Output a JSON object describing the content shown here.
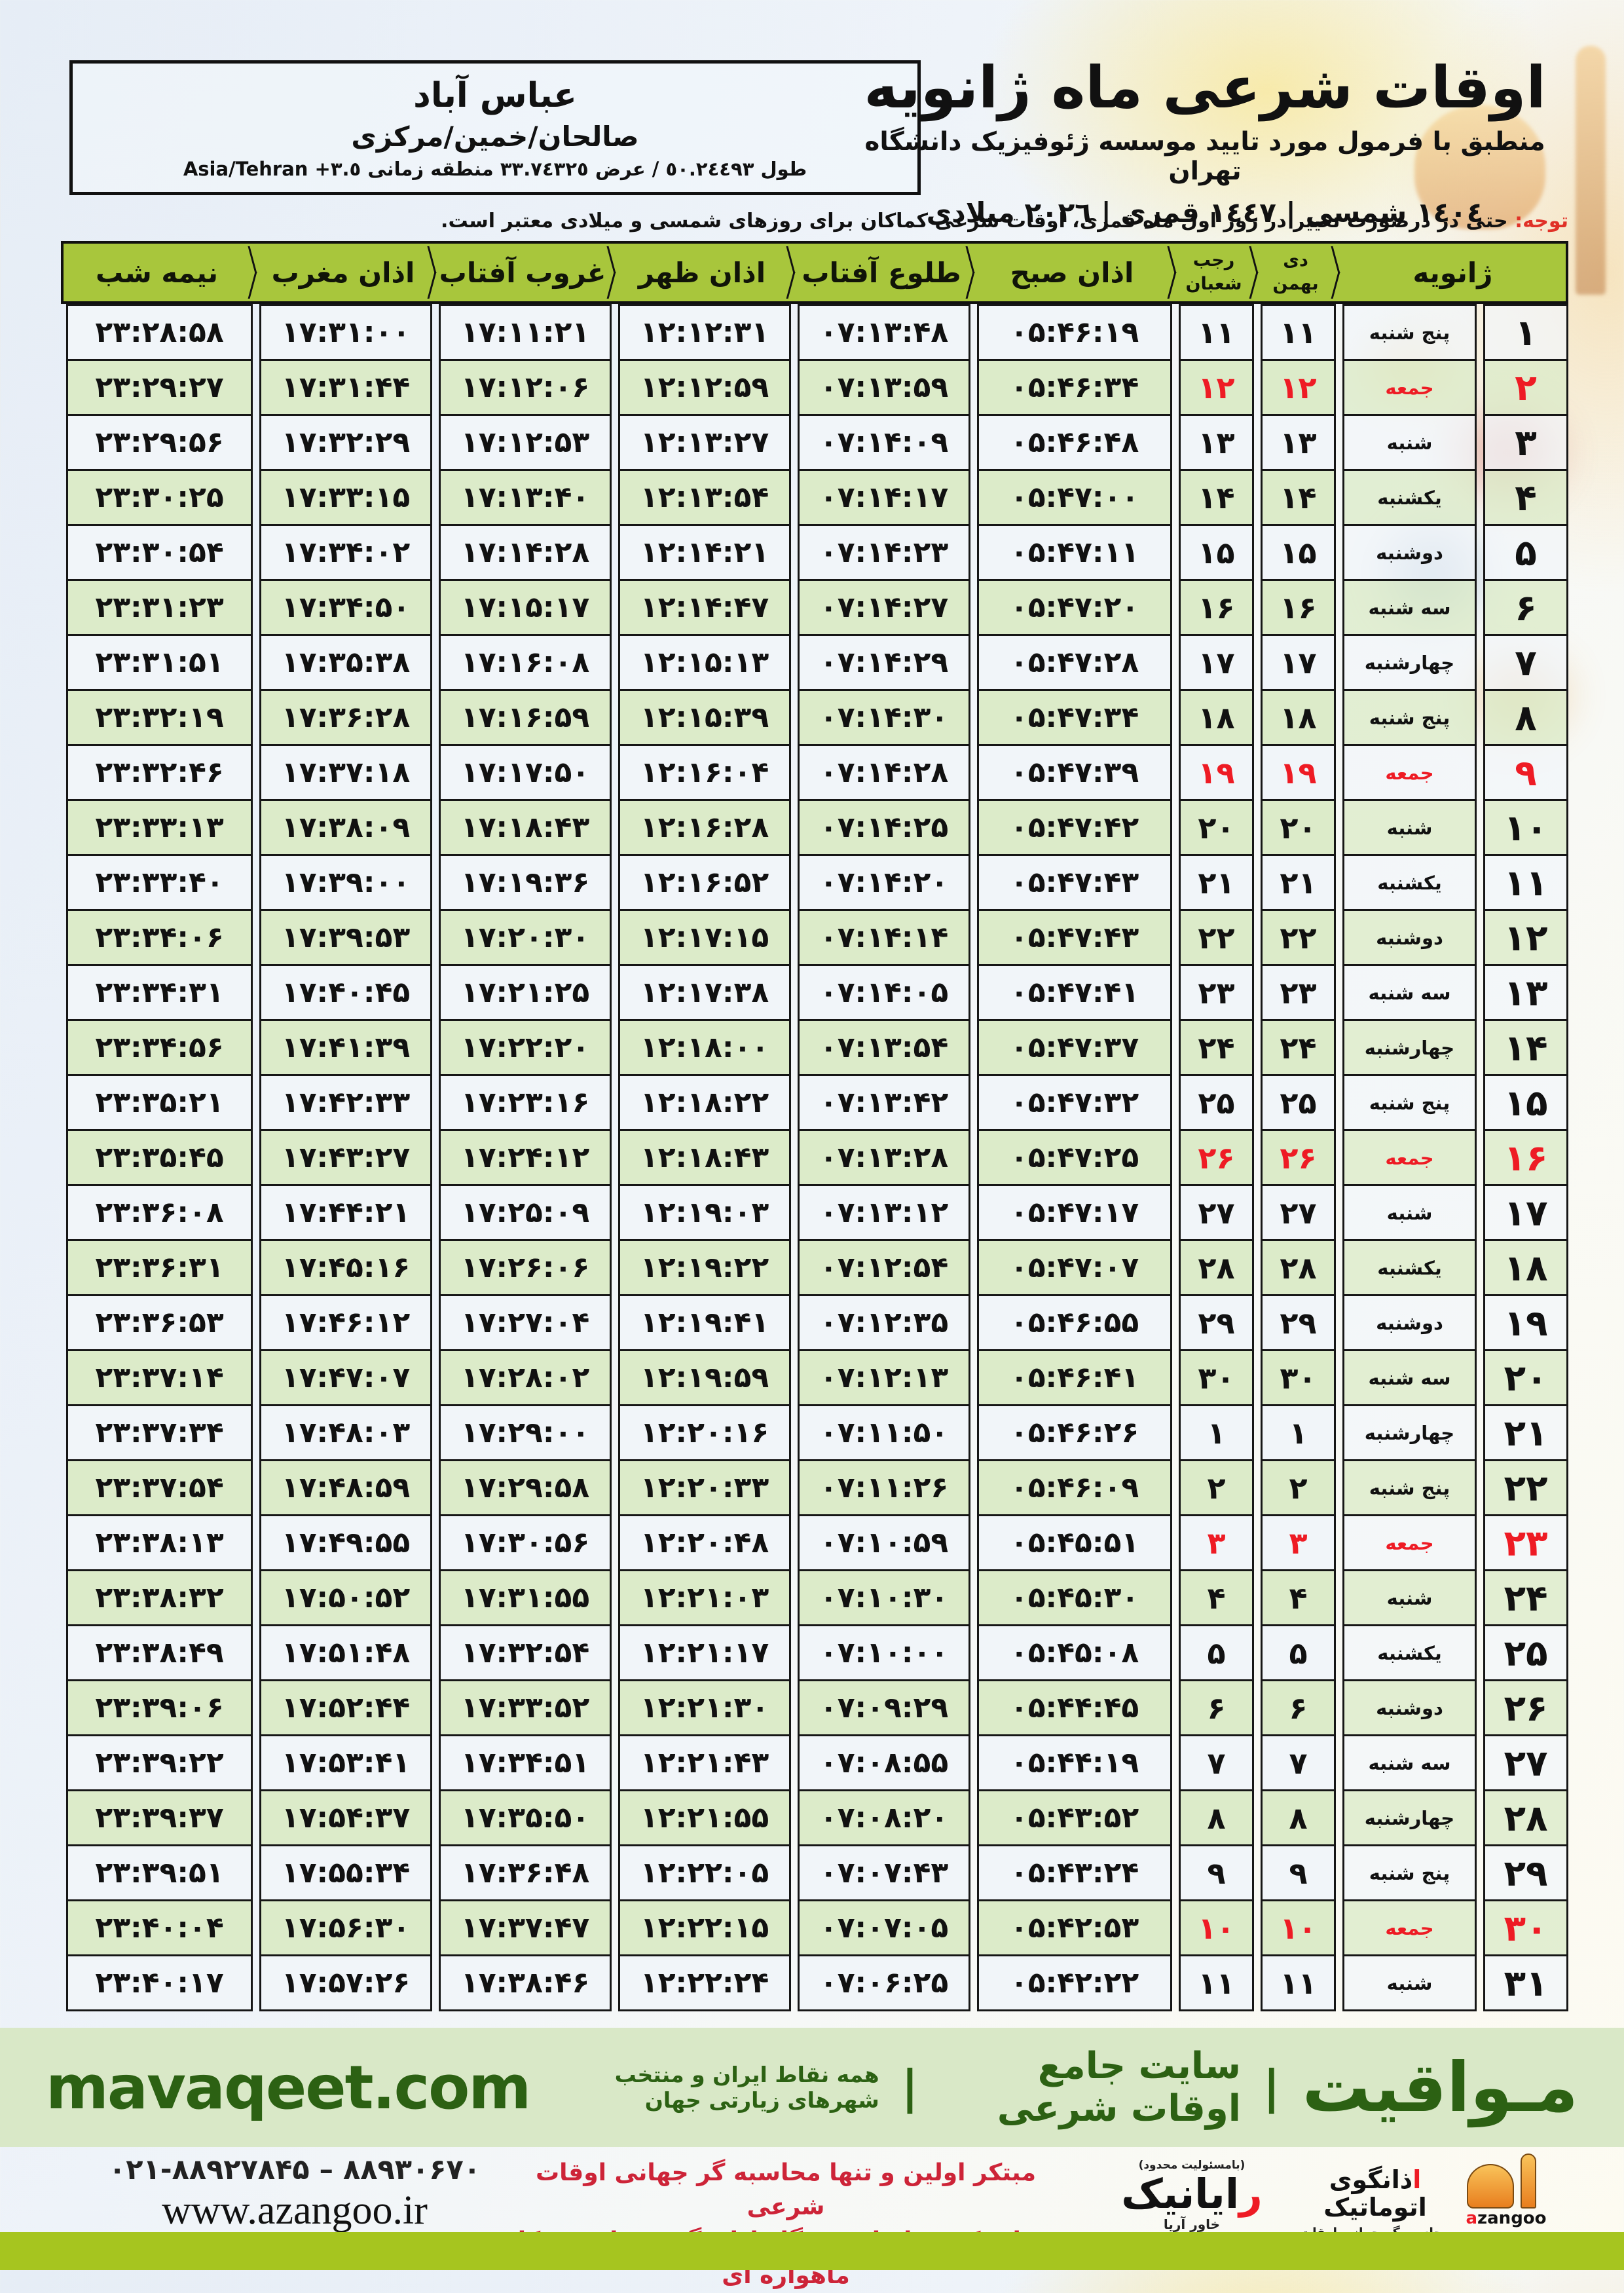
{
  "page": {
    "title": "اوقات شرعی ماه ژانویه",
    "subtitle": "منطبق با فرمول مورد تایید موسسه ژئوفیزیک دانشگاه تهران",
    "date_line": "١٤٠٤ شمسی | ١٤٤٧ قمری | ٢٠٢٦ میلادی"
  },
  "location": {
    "city": "عباس آباد",
    "region": "صالحان/خمین/مرکزی",
    "coords": "طول ٥٠.٢٤٤٩٣ / عرض ٣٣.٧٤٣٢٥ منطقه زمانی",
    "timezone": "Asia/Tehran +٣.٥"
  },
  "note": {
    "label": "توجه:",
    "text": " حتی در درصورت تغییر در روز اول ماه قمری، اوقات شرعی کماکان برای روزهای شمسی و میلادی معتبر است."
  },
  "table": {
    "headers": {
      "month": "ژانویه",
      "shamsi_top": "دی",
      "shamsi_bottom": "بهمن",
      "qamari_top": "رجب",
      "qamari_bottom": "شعبان",
      "sobh": "اذان صبح",
      "tolu": "طلوع آفتاب",
      "zohr": "اذان ظهر",
      "ghorub": "غروب آفتاب",
      "maghreb": "اذان مغرب",
      "nimeshab": "نیمه شب"
    },
    "rows": [
      {
        "day": "۱",
        "weekday": "پنج شنبه",
        "shamsi": "۱۱",
        "qamari": "۱۱",
        "sobh": "۰۵:۴۶:۱۹",
        "tolu": "۰۷:۱۳:۴۸",
        "zohr": "۱۲:۱۲:۳۱",
        "ghorub": "۱۷:۱۱:۲۱",
        "maghreb": "۱۷:۳۱:۰۰",
        "nimeshab": "۲۳:۲۸:۵۸",
        "friday": false
      },
      {
        "day": "۲",
        "weekday": "جمعه",
        "shamsi": "۱۲",
        "qamari": "۱۲",
        "sobh": "۰۵:۴۶:۳۴",
        "tolu": "۰۷:۱۳:۵۹",
        "zohr": "۱۲:۱۲:۵۹",
        "ghorub": "۱۷:۱۲:۰۶",
        "maghreb": "۱۷:۳۱:۴۴",
        "nimeshab": "۲۳:۲۹:۲۷",
        "friday": true
      },
      {
        "day": "۳",
        "weekday": "شنبه",
        "shamsi": "۱۳",
        "qamari": "۱۳",
        "sobh": "۰۵:۴۶:۴۸",
        "tolu": "۰۷:۱۴:۰۹",
        "zohr": "۱۲:۱۳:۲۷",
        "ghorub": "۱۷:۱۲:۵۳",
        "maghreb": "۱۷:۳۲:۲۹",
        "nimeshab": "۲۳:۲۹:۵۶",
        "friday": false
      },
      {
        "day": "۴",
        "weekday": "یکشنبه",
        "shamsi": "۱۴",
        "qamari": "۱۴",
        "sobh": "۰۵:۴۷:۰۰",
        "tolu": "۰۷:۱۴:۱۷",
        "zohr": "۱۲:۱۳:۵۴",
        "ghorub": "۱۷:۱۳:۴۰",
        "maghreb": "۱۷:۳۳:۱۵",
        "nimeshab": "۲۳:۳۰:۲۵",
        "friday": false
      },
      {
        "day": "۵",
        "weekday": "دوشنبه",
        "shamsi": "۱۵",
        "qamari": "۱۵",
        "sobh": "۰۵:۴۷:۱۱",
        "tolu": "۰۷:۱۴:۲۳",
        "zohr": "۱۲:۱۴:۲۱",
        "ghorub": "۱۷:۱۴:۲۸",
        "maghreb": "۱۷:۳۴:۰۲",
        "nimeshab": "۲۳:۳۰:۵۴",
        "friday": false
      },
      {
        "day": "۶",
        "weekday": "سه شنبه",
        "shamsi": "۱۶",
        "qamari": "۱۶",
        "sobh": "۰۵:۴۷:۲۰",
        "tolu": "۰۷:۱۴:۲۷",
        "zohr": "۱۲:۱۴:۴۷",
        "ghorub": "۱۷:۱۵:۱۷",
        "maghreb": "۱۷:۳۴:۵۰",
        "nimeshab": "۲۳:۳۱:۲۳",
        "friday": false
      },
      {
        "day": "۷",
        "weekday": "چهارشنبه",
        "shamsi": "۱۷",
        "qamari": "۱۷",
        "sobh": "۰۵:۴۷:۲۸",
        "tolu": "۰۷:۱۴:۲۹",
        "zohr": "۱۲:۱۵:۱۳",
        "ghorub": "۱۷:۱۶:۰۸",
        "maghreb": "۱۷:۳۵:۳۸",
        "nimeshab": "۲۳:۳۱:۵۱",
        "friday": false
      },
      {
        "day": "۸",
        "weekday": "پنج شنبه",
        "shamsi": "۱۸",
        "qamari": "۱۸",
        "sobh": "۰۵:۴۷:۳۴",
        "tolu": "۰۷:۱۴:۳۰",
        "zohr": "۱۲:۱۵:۳۹",
        "ghorub": "۱۷:۱۶:۵۹",
        "maghreb": "۱۷:۳۶:۲۸",
        "nimeshab": "۲۳:۳۲:۱۹",
        "friday": false
      },
      {
        "day": "۹",
        "weekday": "جمعه",
        "shamsi": "۱۹",
        "qamari": "۱۹",
        "sobh": "۰۵:۴۷:۳۹",
        "tolu": "۰۷:۱۴:۲۸",
        "zohr": "۱۲:۱۶:۰۴",
        "ghorub": "۱۷:۱۷:۵۰",
        "maghreb": "۱۷:۳۷:۱۸",
        "nimeshab": "۲۳:۳۲:۴۶",
        "friday": true
      },
      {
        "day": "۱۰",
        "weekday": "شنبه",
        "shamsi": "۲۰",
        "qamari": "۲۰",
        "sobh": "۰۵:۴۷:۴۲",
        "tolu": "۰۷:۱۴:۲۵",
        "zohr": "۱۲:۱۶:۲۸",
        "ghorub": "۱۷:۱۸:۴۳",
        "maghreb": "۱۷:۳۸:۰۹",
        "nimeshab": "۲۳:۳۳:۱۳",
        "friday": false
      },
      {
        "day": "۱۱",
        "weekday": "یکشنبه",
        "shamsi": "۲۱",
        "qamari": "۲۱",
        "sobh": "۰۵:۴۷:۴۳",
        "tolu": "۰۷:۱۴:۲۰",
        "zohr": "۱۲:۱۶:۵۲",
        "ghorub": "۱۷:۱۹:۳۶",
        "maghreb": "۱۷:۳۹:۰۰",
        "nimeshab": "۲۳:۳۳:۴۰",
        "friday": false
      },
      {
        "day": "۱۲",
        "weekday": "دوشنبه",
        "shamsi": "۲۲",
        "qamari": "۲۲",
        "sobh": "۰۵:۴۷:۴۳",
        "tolu": "۰۷:۱۴:۱۴",
        "zohr": "۱۲:۱۷:۱۵",
        "ghorub": "۱۷:۲۰:۳۰",
        "maghreb": "۱۷:۳۹:۵۳",
        "nimeshab": "۲۳:۳۴:۰۶",
        "friday": false
      },
      {
        "day": "۱۳",
        "weekday": "سه شنبه",
        "shamsi": "۲۳",
        "qamari": "۲۳",
        "sobh": "۰۵:۴۷:۴۱",
        "tolu": "۰۷:۱۴:۰۵",
        "zohr": "۱۲:۱۷:۳۸",
        "ghorub": "۱۷:۲۱:۲۵",
        "maghreb": "۱۷:۴۰:۴۵",
        "nimeshab": "۲۳:۳۴:۳۱",
        "friday": false
      },
      {
        "day": "۱۴",
        "weekday": "چهارشنبه",
        "shamsi": "۲۴",
        "qamari": "۲۴",
        "sobh": "۰۵:۴۷:۳۷",
        "tolu": "۰۷:۱۳:۵۴",
        "zohr": "۱۲:۱۸:۰۰",
        "ghorub": "۱۷:۲۲:۲۰",
        "maghreb": "۱۷:۴۱:۳۹",
        "nimeshab": "۲۳:۳۴:۵۶",
        "friday": false
      },
      {
        "day": "۱۵",
        "weekday": "پنج شنبه",
        "shamsi": "۲۵",
        "qamari": "۲۵",
        "sobh": "۰۵:۴۷:۳۲",
        "tolu": "۰۷:۱۳:۴۲",
        "zohr": "۱۲:۱۸:۲۲",
        "ghorub": "۱۷:۲۳:۱۶",
        "maghreb": "۱۷:۴۲:۳۳",
        "nimeshab": "۲۳:۳۵:۲۱",
        "friday": false
      },
      {
        "day": "۱۶",
        "weekday": "جمعه",
        "shamsi": "۲۶",
        "qamari": "۲۶",
        "sobh": "۰۵:۴۷:۲۵",
        "tolu": "۰۷:۱۳:۲۸",
        "zohr": "۱۲:۱۸:۴۳",
        "ghorub": "۱۷:۲۴:۱۲",
        "maghreb": "۱۷:۴۳:۲۷",
        "nimeshab": "۲۳:۳۵:۴۵",
        "friday": true
      },
      {
        "day": "۱۷",
        "weekday": "شنبه",
        "shamsi": "۲۷",
        "qamari": "۲۷",
        "sobh": "۰۵:۴۷:۱۷",
        "tolu": "۰۷:۱۳:۱۲",
        "zohr": "۱۲:۱۹:۰۳",
        "ghorub": "۱۷:۲۵:۰۹",
        "maghreb": "۱۷:۴۴:۲۱",
        "nimeshab": "۲۳:۳۶:۰۸",
        "friday": false
      },
      {
        "day": "۱۸",
        "weekday": "یکشنبه",
        "shamsi": "۲۸",
        "qamari": "۲۸",
        "sobh": "۰۵:۴۷:۰۷",
        "tolu": "۰۷:۱۲:۵۴",
        "zohr": "۱۲:۱۹:۲۲",
        "ghorub": "۱۷:۲۶:۰۶",
        "maghreb": "۱۷:۴۵:۱۶",
        "nimeshab": "۲۳:۳۶:۳۱",
        "friday": false
      },
      {
        "day": "۱۹",
        "weekday": "دوشنبه",
        "shamsi": "۲۹",
        "qamari": "۲۹",
        "sobh": "۰۵:۴۶:۵۵",
        "tolu": "۰۷:۱۲:۳۵",
        "zohr": "۱۲:۱۹:۴۱",
        "ghorub": "۱۷:۲۷:۰۴",
        "maghreb": "۱۷:۴۶:۱۲",
        "nimeshab": "۲۳:۳۶:۵۳",
        "friday": false
      },
      {
        "day": "۲۰",
        "weekday": "سه شنبه",
        "shamsi": "۳۰",
        "qamari": "۳۰",
        "sobh": "۰۵:۴۶:۴۱",
        "tolu": "۰۷:۱۲:۱۳",
        "zohr": "۱۲:۱۹:۵۹",
        "ghorub": "۱۷:۲۸:۰۲",
        "maghreb": "۱۷:۴۷:۰۷",
        "nimeshab": "۲۳:۳۷:۱۴",
        "friday": false
      },
      {
        "day": "۲۱",
        "weekday": "چهارشنبه",
        "shamsi": "۱",
        "qamari": "۱",
        "sobh": "۰۵:۴۶:۲۶",
        "tolu": "۰۷:۱۱:۵۰",
        "zohr": "۱۲:۲۰:۱۶",
        "ghorub": "۱۷:۲۹:۰۰",
        "maghreb": "۱۷:۴۸:۰۳",
        "nimeshab": "۲۳:۳۷:۳۴",
        "friday": false
      },
      {
        "day": "۲۲",
        "weekday": "پنج شنبه",
        "shamsi": "۲",
        "qamari": "۲",
        "sobh": "۰۵:۴۶:۰۹",
        "tolu": "۰۷:۱۱:۲۶",
        "zohr": "۱۲:۲۰:۳۳",
        "ghorub": "۱۷:۲۹:۵۸",
        "maghreb": "۱۷:۴۸:۵۹",
        "nimeshab": "۲۳:۳۷:۵۴",
        "friday": false
      },
      {
        "day": "۲۳",
        "weekday": "جمعه",
        "shamsi": "۳",
        "qamari": "۳",
        "sobh": "۰۵:۴۵:۵۱",
        "tolu": "۰۷:۱۰:۵۹",
        "zohr": "۱۲:۲۰:۴۸",
        "ghorub": "۱۷:۳۰:۵۶",
        "maghreb": "۱۷:۴۹:۵۵",
        "nimeshab": "۲۳:۳۸:۱۳",
        "friday": true
      },
      {
        "day": "۲۴",
        "weekday": "شنبه",
        "shamsi": "۴",
        "qamari": "۴",
        "sobh": "۰۵:۴۵:۳۰",
        "tolu": "۰۷:۱۰:۳۰",
        "zohr": "۱۲:۲۱:۰۳",
        "ghorub": "۱۷:۳۱:۵۵",
        "maghreb": "۱۷:۵۰:۵۲",
        "nimeshab": "۲۳:۳۸:۳۲",
        "friday": false
      },
      {
        "day": "۲۵",
        "weekday": "یکشنبه",
        "shamsi": "۵",
        "qamari": "۵",
        "sobh": "۰۵:۴۵:۰۸",
        "tolu": "۰۷:۱۰:۰۰",
        "zohr": "۱۲:۲۱:۱۷",
        "ghorub": "۱۷:۳۲:۵۴",
        "maghreb": "۱۷:۵۱:۴۸",
        "nimeshab": "۲۳:۳۸:۴۹",
        "friday": false
      },
      {
        "day": "۲۶",
        "weekday": "دوشنبه",
        "shamsi": "۶",
        "qamari": "۶",
        "sobh": "۰۵:۴۴:۴۵",
        "tolu": "۰۷:۰۹:۲۹",
        "zohr": "۱۲:۲۱:۳۰",
        "ghorub": "۱۷:۳۳:۵۲",
        "maghreb": "۱۷:۵۲:۴۴",
        "nimeshab": "۲۳:۳۹:۰۶",
        "friday": false
      },
      {
        "day": "۲۷",
        "weekday": "سه شنبه",
        "shamsi": "۷",
        "qamari": "۷",
        "sobh": "۰۵:۴۴:۱۹",
        "tolu": "۰۷:۰۸:۵۵",
        "zohr": "۱۲:۲۱:۴۳",
        "ghorub": "۱۷:۳۴:۵۱",
        "maghreb": "۱۷:۵۳:۴۱",
        "nimeshab": "۲۳:۳۹:۲۲",
        "friday": false
      },
      {
        "day": "۲۸",
        "weekday": "چهارشنبه",
        "shamsi": "۸",
        "qamari": "۸",
        "sobh": "۰۵:۴۳:۵۲",
        "tolu": "۰۷:۰۸:۲۰",
        "zohr": "۱۲:۲۱:۵۵",
        "ghorub": "۱۷:۳۵:۵۰",
        "maghreb": "۱۷:۵۴:۳۷",
        "nimeshab": "۲۳:۳۹:۳۷",
        "friday": false
      },
      {
        "day": "۲۹",
        "weekday": "پنج شنبه",
        "shamsi": "۹",
        "qamari": "۹",
        "sobh": "۰۵:۴۳:۲۴",
        "tolu": "۰۷:۰۷:۴۳",
        "zohr": "۱۲:۲۲:۰۵",
        "ghorub": "۱۷:۳۶:۴۸",
        "maghreb": "۱۷:۵۵:۳۴",
        "nimeshab": "۲۳:۳۹:۵۱",
        "friday": false
      },
      {
        "day": "۳۰",
        "weekday": "جمعه",
        "shamsi": "۱۰",
        "qamari": "۱۰",
        "sobh": "۰۵:۴۲:۵۳",
        "tolu": "۰۷:۰۷:۰۵",
        "zohr": "۱۲:۲۲:۱۵",
        "ghorub": "۱۷:۳۷:۴۷",
        "maghreb": "۱۷:۵۶:۳۰",
        "nimeshab": "۲۳:۴۰:۰۴",
        "friday": true
      },
      {
        "day": "۳۱",
        "weekday": "شنبه",
        "shamsi": "۱۱",
        "qamari": "۱۱",
        "sobh": "۰۵:۴۲:۲۲",
        "tolu": "۰۷:۰۶:۲۵",
        "zohr": "۱۲:۲۲:۲۴",
        "ghorub": "۱۷:۳۸:۴۶",
        "maghreb": "۱۷:۵۷:۲۶",
        "nimeshab": "۲۳:۴۰:۱۷",
        "friday": false
      }
    ]
  },
  "site_bar": {
    "brand_fa": "مـواقیت",
    "sep": "|",
    "tagline": "سایت جامع اوقات شرعی",
    "subtag": "همه نقاط ایران و منتخب شهرهای زیارتی جهان",
    "brand_en": "mavaqeet.com"
  },
  "footer": {
    "phone": "۰۲۱-۸۸۹۲۷۸۴۵ – ۸۸۹۳۰۶۷۰",
    "website": "www.azangoo.ir",
    "slogan_line1": "مبتکر اولین و تنها محاسبه گر جهانی اوقات شرعی",
    "slogan_line2": "و تولید کننده انواع دستگاه اذان گوی تمام خودکار ماهواره ای",
    "rayanik": {
      "note": "(بامسئولیت محدود)",
      "first": "ر",
      "rest": "ایانیک",
      "sub": "خاور آریا"
    },
    "azangoo_fa": {
      "first": "ا",
      "rest": "ذانگوی اتوماتیک",
      "sub": "محاسبه گر جهانی اوقات شرعی"
    },
    "azangoo_en": {
      "a": "a",
      "rest": "zangoo"
    }
  },
  "colors": {
    "header_green": "#a8c63c",
    "row_green": "#dcebc9",
    "friday_red": "#ee1b24",
    "brand_dark_green": "#2c6113",
    "bottom_strip_green": "#a6c51f"
  }
}
